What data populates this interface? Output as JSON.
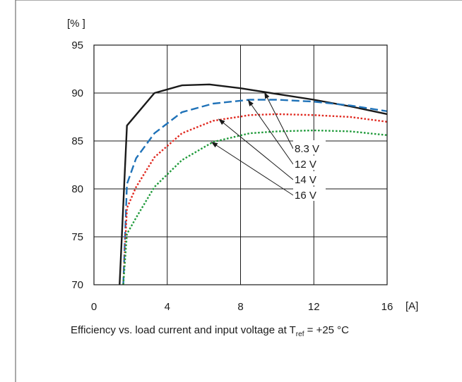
{
  "chart_data": {
    "type": "line",
    "ylabel": "[% ]",
    "xlabel": "[A]",
    "xlim": [
      0,
      16
    ],
    "ylim": [
      70,
      95
    ],
    "x_ticks": [
      0,
      4,
      8,
      12,
      16
    ],
    "y_ticks": [
      70,
      75,
      80,
      85,
      90,
      95
    ],
    "grid": true,
    "caption": {
      "before": "Efficiency vs. load current and input voltage at T",
      "sub": "ref",
      "after": " = +25 °C"
    },
    "series": [
      {
        "name": "8.3 V",
        "color": "#1a1a1a",
        "dash": "solid",
        "x": [
          1.4,
          1.8,
          3.3,
          4.8,
          6.3,
          8.0,
          10.0,
          12.0,
          14.0,
          16.0
        ],
        "y": [
          70,
          86.6,
          90.0,
          90.8,
          90.9,
          90.5,
          89.9,
          89.3,
          88.6,
          87.8
        ]
      },
      {
        "name": "12 V",
        "color": "#1f72b8",
        "dash": "dashed",
        "x": [
          1.6,
          1.8,
          2.3,
          3.3,
          4.8,
          6.5,
          8.5,
          10.0,
          12.0,
          14.0,
          16.0
        ],
        "y": [
          70,
          80.5,
          83.2,
          85.8,
          88.0,
          88.9,
          89.3,
          89.3,
          89.1,
          88.7,
          88.1
        ]
      },
      {
        "name": "14 V",
        "color": "#e0281f",
        "dash": "dotted",
        "x": [
          1.6,
          1.8,
          2.3,
          3.3,
          4.8,
          6.5,
          8.5,
          10.0,
          12.0,
          14.0,
          16.0
        ],
        "y": [
          70,
          78.0,
          80.2,
          83.3,
          85.8,
          87.1,
          87.7,
          87.8,
          87.7,
          87.5,
          87.0
        ]
      },
      {
        "name": "16 V",
        "color": "#1f9a3a",
        "dash": "dotted",
        "x": [
          1.6,
          1.8,
          2.3,
          3.3,
          4.8,
          6.5,
          8.5,
          10.0,
          12.0,
          14.0,
          16.0
        ],
        "y": [
          70,
          75.3,
          77.0,
          80.2,
          83.0,
          84.9,
          85.8,
          86.0,
          86.1,
          86.0,
          85.6
        ]
      }
    ],
    "annotations": [
      {
        "text": "8.3 V",
        "series": "8.3 V",
        "x": 9.3,
        "y": 90.1
      },
      {
        "text": "12 V",
        "series": "12 V",
        "x": 8.4,
        "y": 89.3
      },
      {
        "text": "14 V",
        "series": "14 V",
        "x": 6.8,
        "y": 87.3
      },
      {
        "text": "16 V",
        "series": "16 V",
        "x": 6.4,
        "y": 84.9
      }
    ]
  }
}
